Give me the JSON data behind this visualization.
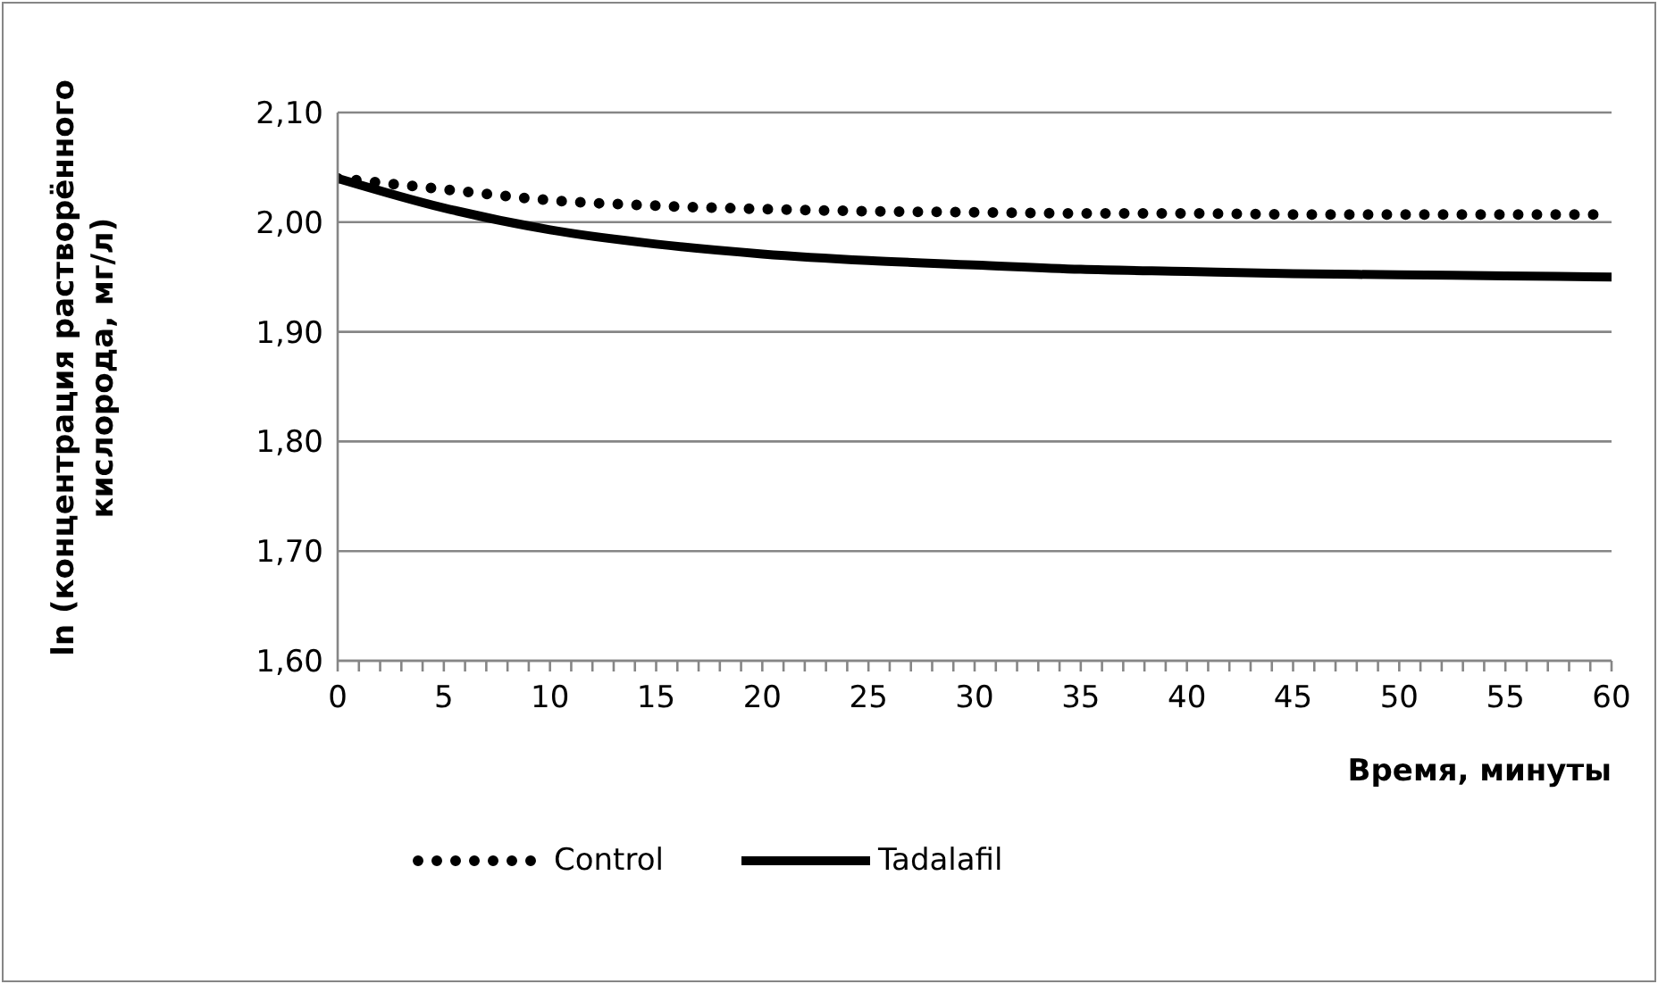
{
  "chart_data": {
    "type": "line",
    "xlabel": "Время, минуты",
    "ylabel": "ln (концентрация растворённого\nкислорода, мг/л)",
    "x": [
      0,
      5,
      10,
      15,
      20,
      25,
      30,
      35,
      40,
      45,
      50,
      55,
      60
    ],
    "series": [
      {
        "name": "Control",
        "color": "#000000",
        "line_style": "dotted",
        "values": [
          2.04,
          2.03,
          2.02,
          2.015,
          2.012,
          2.01,
          2.009,
          2.008,
          2.008,
          2.007,
          2.007,
          2.007,
          2.007
        ]
      },
      {
        "name": "Tadalafil",
        "color": "#000000",
        "line_style": "solid",
        "values": [
          2.04,
          2.013,
          1.993,
          1.98,
          1.971,
          1.965,
          1.961,
          1.957,
          1.955,
          1.953,
          1.952,
          1.951,
          1.95
        ]
      }
    ],
    "xlim": [
      0,
      60
    ],
    "xticks": [
      0,
      {
        "value": 1,
        "label": null
      },
      {
        "value": 2,
        "label": null
      },
      {
        "value": 3,
        "label": null
      },
      {
        "value": 4,
        "label": null
      },
      5,
      {
        "value": 6,
        "label": null
      },
      {
        "value": 7,
        "label": null
      },
      {
        "value": 8,
        "label": null
      },
      {
        "value": 9,
        "label": null
      },
      10,
      {
        "value": 11,
        "label": null
      },
      {
        "value": 12,
        "label": null
      },
      {
        "value": 13,
        "label": null
      },
      {
        "value": 14,
        "label": null
      },
      15,
      {
        "value": 16,
        "label": null
      },
      {
        "value": 17,
        "label": null
      },
      {
        "value": 18,
        "label": null
      },
      {
        "value": 19,
        "label": null
      },
      20,
      {
        "value": 21,
        "label": null
      },
      {
        "value": 22,
        "label": null
      },
      {
        "value": 23,
        "label": null
      },
      {
        "value": 24,
        "label": null
      },
      25,
      {
        "value": 26,
        "label": null
      },
      {
        "value": 27,
        "label": null
      },
      {
        "value": 28,
        "label": null
      },
      {
        "value": 29,
        "label": null
      },
      30,
      {
        "value": 31,
        "label": null
      },
      {
        "value": 32,
        "label": null
      },
      {
        "value": 33,
        "label": null
      },
      {
        "value": 34,
        "label": null
      },
      35,
      {
        "value": 36,
        "label": null
      },
      {
        "value": 37,
        "label": null
      },
      {
        "value": 38,
        "label": null
      },
      {
        "value": 39,
        "label": null
      },
      40,
      {
        "value": 41,
        "label": null
      },
      {
        "value": 42,
        "label": null
      },
      {
        "value": 43,
        "label": null
      },
      {
        "value": 44,
        "label": null
      },
      45,
      {
        "value": 46,
        "label": null
      },
      {
        "value": 47,
        "label": null
      },
      {
        "value": 48,
        "label": null
      },
      {
        "value": 49,
        "label": null
      },
      50,
      {
        "value": 51,
        "label": null
      },
      {
        "value": 52,
        "label": null
      },
      {
        "value": 53,
        "label": null
      },
      {
        "value": 54,
        "label": null
      },
      55,
      {
        "value": 56,
        "label": null
      },
      {
        "value": 57,
        "label": null
      },
      {
        "value": 58,
        "label": null
      },
      {
        "value": 59,
        "label": null
      },
      60
    ],
    "ylim": [
      1.6,
      2.1
    ],
    "yticks": [
      {
        "value": 1.6,
        "label": "1,60"
      },
      {
        "value": 1.7,
        "label": "1,70"
      },
      {
        "value": 1.8,
        "label": "1,80"
      },
      {
        "value": 1.9,
        "label": "1,90"
      },
      {
        "value": 2.0,
        "label": "2,00"
      },
      {
        "value": 2.1,
        "label": "2,10"
      }
    ],
    "grid": "y",
    "legend": "bottom",
    "marker": "none"
  }
}
